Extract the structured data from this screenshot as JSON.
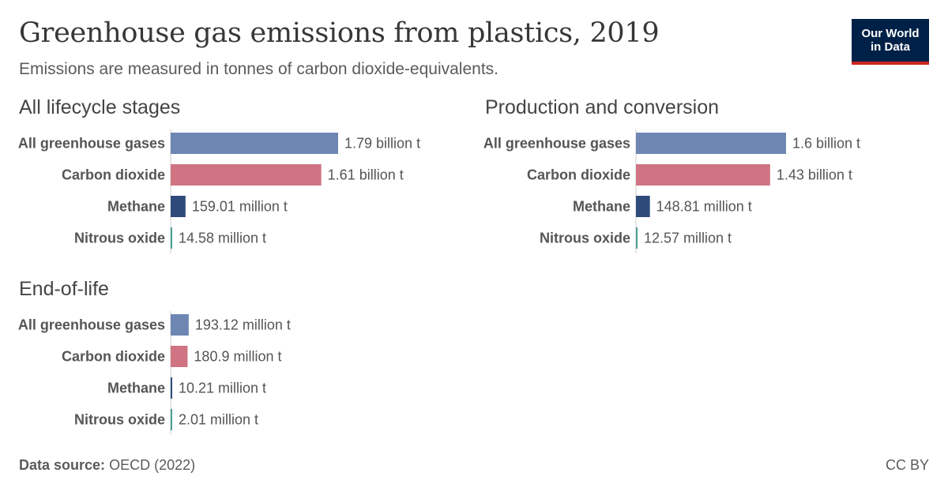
{
  "title": "Greenhouse gas emissions from plastics, 2019",
  "subtitle": "Emissions are measured in tonnes of carbon dioxide-equivalents.",
  "logo": {
    "line1": "Our World",
    "line2": "in Data"
  },
  "footer": {
    "source_label": "Data source:",
    "source_value": "OECD (2022)",
    "license": "CC BY"
  },
  "colors": {
    "All greenhouse gases": "#6d86b2",
    "Carbon dioxide": "#d07383",
    "Methane": "#2d4a78",
    "Nitrous oxide": "#4a9e8f"
  },
  "chart_data": [
    {
      "type": "bar",
      "title": "All lifecycle stages",
      "categories": [
        "All greenhouse gases",
        "Carbon dioxide",
        "Methane",
        "Nitrous oxide"
      ],
      "values": [
        1790000000,
        1610000000,
        159010000,
        14580000
      ],
      "value_labels": [
        "1.79 billion t",
        "1.61 billion t",
        "159.01 million t",
        "14.58 million t"
      ]
    },
    {
      "type": "bar",
      "title": "Production and conversion",
      "categories": [
        "All greenhouse gases",
        "Carbon dioxide",
        "Methane",
        "Nitrous oxide"
      ],
      "values": [
        1600000000,
        1430000000,
        148810000,
        12570000
      ],
      "value_labels": [
        "1.6 billion t",
        "1.43 billion t",
        "148.81 million t",
        "12.57 million t"
      ]
    },
    {
      "type": "bar",
      "title": "End-of-life",
      "categories": [
        "All greenhouse gases",
        "Carbon dioxide",
        "Methane",
        "Nitrous oxide"
      ],
      "values": [
        193120000,
        180900000,
        10210000,
        2010000
      ],
      "value_labels": [
        "193.12 million t",
        "180.9 million t",
        "10.21 million t",
        "2.01 million t"
      ]
    }
  ]
}
